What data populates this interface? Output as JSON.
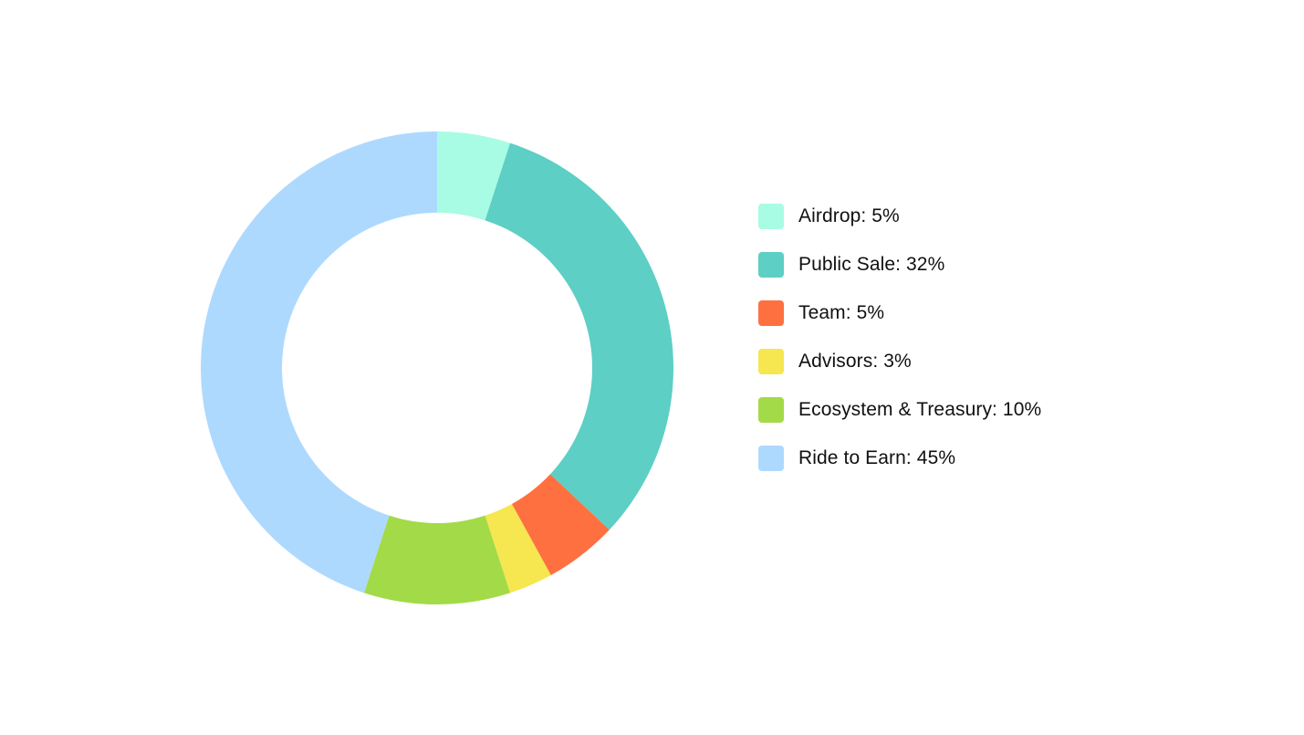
{
  "chart_data": {
    "type": "pie",
    "variant": "donut",
    "title": "",
    "legend_position": "right",
    "slices": [
      {
        "name": "Airdrop",
        "value": 5,
        "label": "Airdrop: 5%",
        "color": "#A8FCE4"
      },
      {
        "name": "Public Sale",
        "value": 32,
        "label": "Public Sale: 32%",
        "color": "#5DCFC5"
      },
      {
        "name": "Team",
        "value": 5,
        "label": "Team: 5%",
        "color": "#FF7041"
      },
      {
        "name": "Advisors",
        "value": 3,
        "label": "Advisors: 3%",
        "color": "#F6E650"
      },
      {
        "name": "Ecosystem & Treasury",
        "value": 10,
        "label": "Ecosystem & Treasury: 10%",
        "color": "#A3DA48"
      },
      {
        "name": "Ride to Earn",
        "value": 45,
        "label": "Ride to Earn: 45%",
        "color": "#AED9FE"
      }
    ]
  }
}
